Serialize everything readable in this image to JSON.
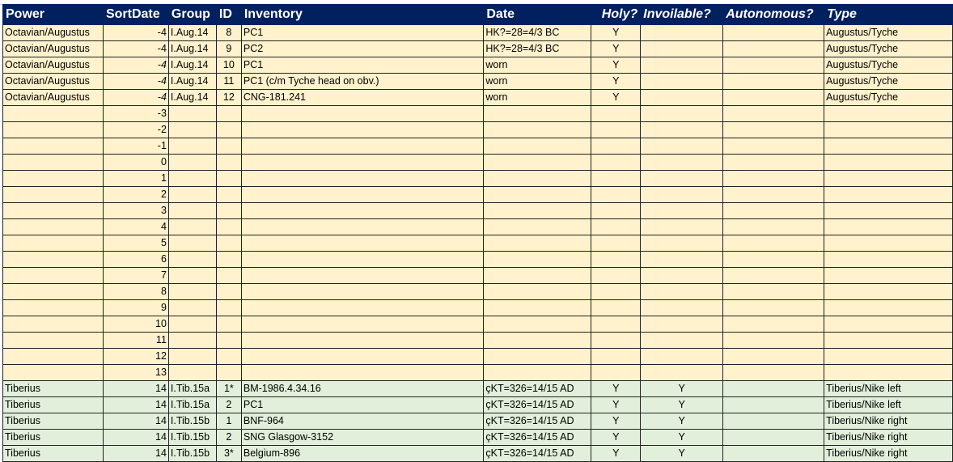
{
  "columns": [
    "Power",
    "SortDate",
    "Group",
    "ID",
    "Inventory",
    "Date",
    "Holy?",
    "Invoilable?",
    "Autonomous?",
    "Type"
  ],
  "colors": {
    "header": "#002060",
    "augustus_fill": "#FFF2CC",
    "tiberius_fill": "#E2EFDA"
  },
  "rows": [
    {
      "power": "Octavian/Augustus",
      "sortdate": "-4",
      "group": "I.Aug.14",
      "id": "8",
      "inventory": "PC1",
      "date": "HK?=28=4/3 BC",
      "holy": "Y",
      "invoilable": "",
      "autonomous": "",
      "type": "Augustus/Tyche",
      "fill": "tan"
    },
    {
      "power": "Octavian/Augustus",
      "sortdate": "-4",
      "group": "I.Aug.14",
      "id": "9",
      "inventory": "PC2",
      "date": "HK?=28=4/3 BC",
      "holy": "Y",
      "invoilable": "",
      "autonomous": "",
      "type": "Augustus/Tyche",
      "fill": "tan"
    },
    {
      "power": "Octavian/Augustus",
      "sortdate": "-4",
      "italic": true,
      "group": "I.Aug.14",
      "id": "10",
      "inventory": "PC1",
      "date": "worn",
      "holy": "Y",
      "invoilable": "",
      "autonomous": "",
      "type": "Augustus/Tyche",
      "fill": "tan"
    },
    {
      "power": "Octavian/Augustus",
      "sortdate": "-4",
      "italic": true,
      "group": "I.Aug.14",
      "id": "11",
      "inventory": "PC1 (c/m Tyche head on obv.)",
      "date": "worn",
      "holy": "Y",
      "invoilable": "",
      "autonomous": "",
      "type": "Augustus/Tyche",
      "fill": "tan"
    },
    {
      "power": "Octavian/Augustus",
      "sortdate": "-4",
      "italic": true,
      "group": "I.Aug.14",
      "id": "12",
      "inventory": "CNG-181.241",
      "date": "worn",
      "holy": "Y",
      "invoilable": "",
      "autonomous": "",
      "type": "Augustus/Tyche",
      "fill": "tan"
    },
    {
      "sortdate": "-3",
      "fill": "tan"
    },
    {
      "sortdate": "-2",
      "fill": "tan"
    },
    {
      "sortdate": "-1",
      "fill": "tan"
    },
    {
      "sortdate": "0",
      "fill": "tan"
    },
    {
      "sortdate": "1",
      "fill": "tan"
    },
    {
      "sortdate": "2",
      "fill": "tan"
    },
    {
      "sortdate": "3",
      "fill": "tan"
    },
    {
      "sortdate": "4",
      "fill": "tan"
    },
    {
      "sortdate": "5",
      "fill": "tan"
    },
    {
      "sortdate": "6",
      "fill": "tan"
    },
    {
      "sortdate": "7",
      "fill": "tan"
    },
    {
      "sortdate": "8",
      "fill": "tan"
    },
    {
      "sortdate": "9",
      "fill": "tan"
    },
    {
      "sortdate": "10",
      "fill": "tan"
    },
    {
      "sortdate": "11",
      "fill": "tan"
    },
    {
      "sortdate": "12",
      "fill": "tan"
    },
    {
      "sortdate": "13",
      "fill": "tan"
    },
    {
      "power": "Tiberius",
      "sortdate": "14",
      "group": "I.Tib.15a",
      "id": "1*",
      "inventory": "BM-1986.4.34.16",
      "date": "çKT=326=14/15 AD",
      "holy": "Y",
      "invoilable": "Y",
      "autonomous": "",
      "type": "Tiberius/Nike left",
      "fill": "green"
    },
    {
      "power": "Tiberius",
      "sortdate": "14",
      "group": "I.Tib.15a",
      "id": "2",
      "inventory": "PC1",
      "date": "çKT=326=14/15 AD",
      "holy": "Y",
      "invoilable": "Y",
      "autonomous": "",
      "type": "Tiberius/Nike left",
      "fill": "green"
    },
    {
      "power": "Tiberius",
      "sortdate": "14",
      "group": "I.Tib.15b",
      "id": "1",
      "inventory": "BNF-964",
      "date": "çKT=326=14/15 AD",
      "holy": "Y",
      "invoilable": "Y",
      "autonomous": "",
      "type": "Tiberius/Nike right",
      "fill": "green"
    },
    {
      "power": "Tiberius",
      "sortdate": "14",
      "group": "I.Tib.15b",
      "id": "2",
      "inventory": "SNG Glasgow-3152",
      "date": "çKT=326=14/15 AD",
      "holy": "Y",
      "invoilable": "Y",
      "autonomous": "",
      "type": "Tiberius/Nike right",
      "fill": "green"
    },
    {
      "power": "Tiberius",
      "sortdate": "14",
      "group": "I.Tib.15b",
      "id": "3*",
      "inventory": "Belgium-896",
      "date": "çKT=326=14/15 AD",
      "holy": "Y",
      "invoilable": "Y",
      "autonomous": "",
      "type": "Tiberius/Nike right",
      "fill": "green"
    }
  ]
}
